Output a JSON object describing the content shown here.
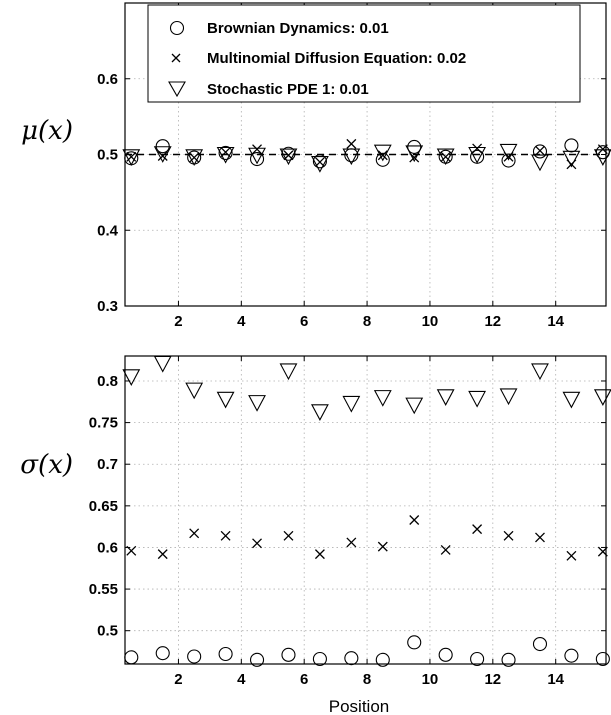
{
  "chart_data": [
    {
      "type": "scatter",
      "ylabel": "μ(x)",
      "xlabel": "",
      "xlim": [
        0.3,
        15.6
      ],
      "ylim": [
        0.3,
        0.7
      ],
      "xticks": [
        "2",
        "4",
        "6",
        "8",
        "10",
        "12",
        "14"
      ],
      "yticks": [
        "0.3",
        "0.4",
        "0.5",
        "0.6"
      ],
      "grid": true,
      "legend_position": "top-right",
      "reference_line": {
        "y": 0.5,
        "style": "dashed"
      },
      "x": [
        0.5,
        1.5,
        2.5,
        3.5,
        4.5,
        5.5,
        6.5,
        7.5,
        8.5,
        9.5,
        10.5,
        11.5,
        12.5,
        13.5,
        14.5,
        15.5
      ],
      "series": [
        {
          "name": "Brownian Dynamics: 0.01",
          "marker": "circle",
          "values": [
            0.495,
            0.511,
            0.496,
            0.502,
            0.494,
            0.501,
            0.491,
            0.499,
            0.493,
            0.51,
            0.497,
            0.497,
            0.492,
            0.504,
            0.512,
            0.503
          ]
        },
        {
          "name": "Multinomial Diffusion Equation: 0.02",
          "marker": "x",
          "values": [
            0.497,
            0.498,
            0.496,
            0.503,
            0.507,
            0.499,
            0.49,
            0.514,
            0.499,
            0.496,
            0.497,
            0.508,
            0.497,
            0.505,
            0.487,
            0.507
          ]
        },
        {
          "name": "Stochastic PDE 1: 0.01",
          "marker": "triangle-down",
          "values": [
            0.497,
            0.501,
            0.497,
            0.5,
            0.499,
            0.498,
            0.488,
            0.498,
            0.503,
            0.502,
            0.498,
            0.5,
            0.504,
            0.49,
            0.495,
            0.497
          ]
        }
      ]
    },
    {
      "type": "scatter",
      "ylabel": "σ(x)",
      "xlabel": "Position",
      "xlim": [
        0.3,
        15.6
      ],
      "ylim": [
        0.46,
        0.83
      ],
      "xticks": [
        "2",
        "4",
        "6",
        "8",
        "10",
        "12",
        "14"
      ],
      "yticks": [
        "0.5",
        "0.55",
        "0.6",
        "0.65",
        "0.7",
        "0.75",
        "0.8"
      ],
      "grid": true,
      "x": [
        0.5,
        1.5,
        2.5,
        3.5,
        4.5,
        5.5,
        6.5,
        7.5,
        8.5,
        9.5,
        10.5,
        11.5,
        12.5,
        13.5,
        14.5,
        15.5
      ],
      "series": [
        {
          "marker": "circle",
          "values": [
            0.468,
            0.473,
            0.469,
            0.472,
            0.465,
            0.471,
            0.466,
            0.467,
            0.465,
            0.486,
            0.471,
            0.466,
            0.465,
            0.484,
            0.47,
            0.466
          ]
        },
        {
          "marker": "x",
          "values": [
            0.596,
            0.592,
            0.617,
            0.614,
            0.605,
            0.614,
            0.592,
            0.606,
            0.601,
            0.633,
            0.597,
            0.622,
            0.614,
            0.612,
            0.59,
            0.595
          ]
        },
        {
          "marker": "triangle-down",
          "values": [
            0.805,
            0.821,
            0.789,
            0.778,
            0.774,
            0.812,
            0.763,
            0.773,
            0.78,
            0.771,
            0.781,
            0.779,
            0.782,
            0.812,
            0.778,
            0.781
          ]
        }
      ]
    }
  ]
}
